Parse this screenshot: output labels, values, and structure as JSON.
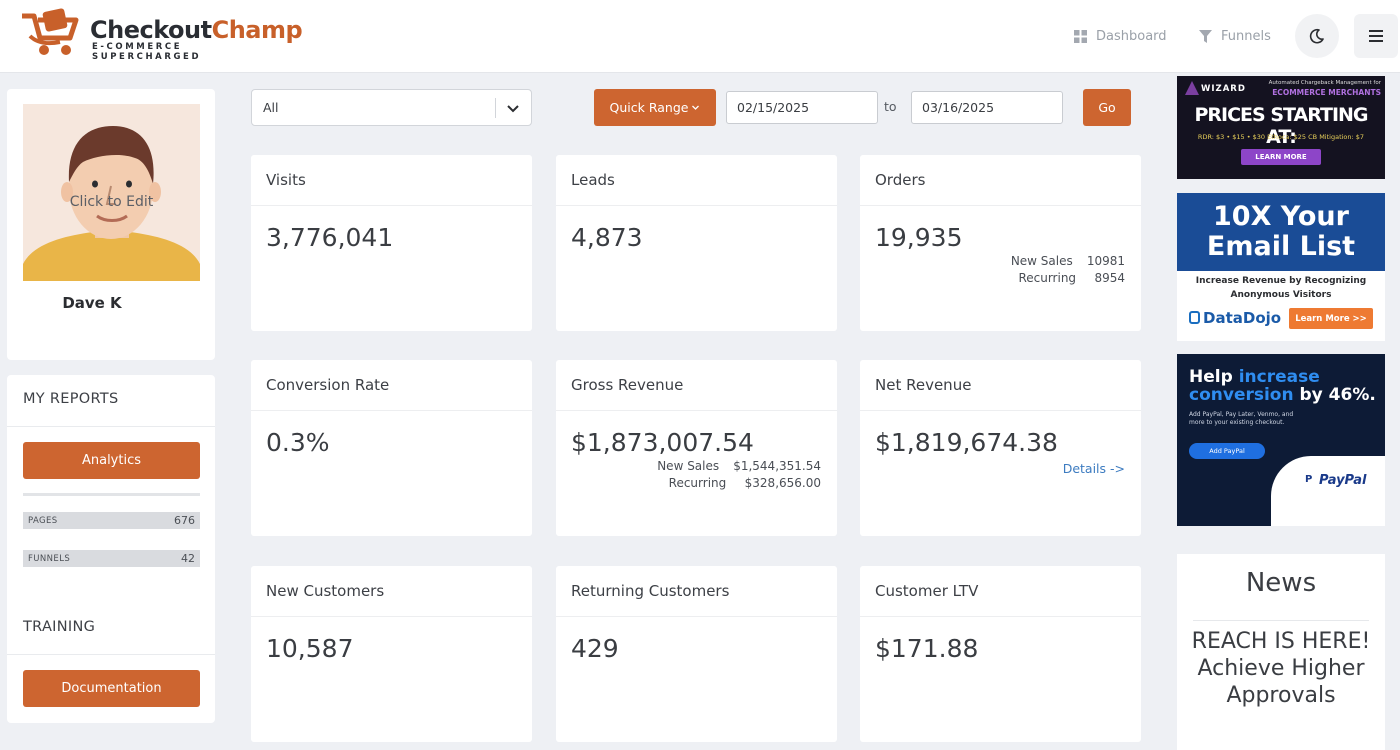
{
  "brand": {
    "name_part1": "Checkout",
    "name_part2": "Champ",
    "tagline": "E-COMMERCE SUPERCHARGED"
  },
  "nav": [
    {
      "label": "Dashboard",
      "icon": "dashboard-grid-icon"
    },
    {
      "label": "Funnels",
      "icon": "funnel-icon"
    }
  ],
  "header_icons": [
    "moon-icon",
    "hamburger-menu-icon"
  ],
  "profile": {
    "avatar_cta": "Click to Edit",
    "name": "Dave K"
  },
  "my_reports": {
    "title": "MY REPORTS",
    "analytics_button": "Analytics",
    "stats": [
      {
        "label": "PAGES",
        "value": "676"
      },
      {
        "label": "FUNNELS",
        "value": "42"
      }
    ]
  },
  "training": {
    "title": "TRAINING",
    "documentation_button": "Documentation"
  },
  "filters": {
    "select_value": "All",
    "quick_range": "Quick Range",
    "from_date": "02/15/2025",
    "to_label": "to",
    "to_date": "03/16/2025",
    "go": "Go"
  },
  "cards": {
    "visits": {
      "title": "Visits",
      "value": "3,776,041"
    },
    "leads": {
      "title": "Leads",
      "value": "4,873"
    },
    "orders": {
      "title": "Orders",
      "value": "19,935",
      "new_sales_label": "New Sales",
      "new_sales_value": "10981",
      "recurring_label": "Recurring",
      "recurring_value": "8954"
    },
    "conversion": {
      "title": "Conversion Rate",
      "value": "0.3%"
    },
    "gross": {
      "title": "Gross Revenue",
      "value": "$1,873,007.54",
      "new_sales_label": "New Sales",
      "new_sales_value": "$1,544,351.54",
      "recurring_label": "Recurring",
      "recurring_value": "$328,656.00"
    },
    "net": {
      "title": "Net Revenue",
      "value": "$1,819,674.38",
      "details": "Details ->"
    },
    "new_customers": {
      "title": "New Customers",
      "value": "10,587"
    },
    "returning_customers": {
      "title": "Returning Customers",
      "value": "429"
    },
    "ltv": {
      "title": "Customer LTV",
      "value": "$171.88"
    }
  },
  "ads": {
    "wizard": {
      "brand": "WIZARD",
      "line1": "Automated Chargeback Management for",
      "line2": "ECOMMERCE MERCHANTS",
      "headline": "PRICES STARTING AT:",
      "prices": "RDR: $3 • $15 • $30   Ethoca: $25   CB Mitigation: $7",
      "cta": "LEARN MORE"
    },
    "datadojo": {
      "headline1": "10X Your",
      "headline2": "Email List",
      "body": "Increase Revenue by Recognizing Anonymous Visitors",
      "brand": "DataDojo",
      "cta": "Learn More >>"
    },
    "paypal": {
      "h1": "Help",
      "h2": "increase",
      "h3": "conversion",
      "h4": "by 46%.",
      "body": "Add PayPal, Pay Later, Venmo, and more to your existing checkout.",
      "cta": "Add PayPal",
      "brand": "PayPal"
    }
  },
  "news": {
    "title": "News",
    "headline": "REACH IS HERE! Achieve Higher Approvals"
  },
  "colors": {
    "accent": "#cd6530",
    "link": "#3c7bc0",
    "background": "#eef0f4"
  }
}
